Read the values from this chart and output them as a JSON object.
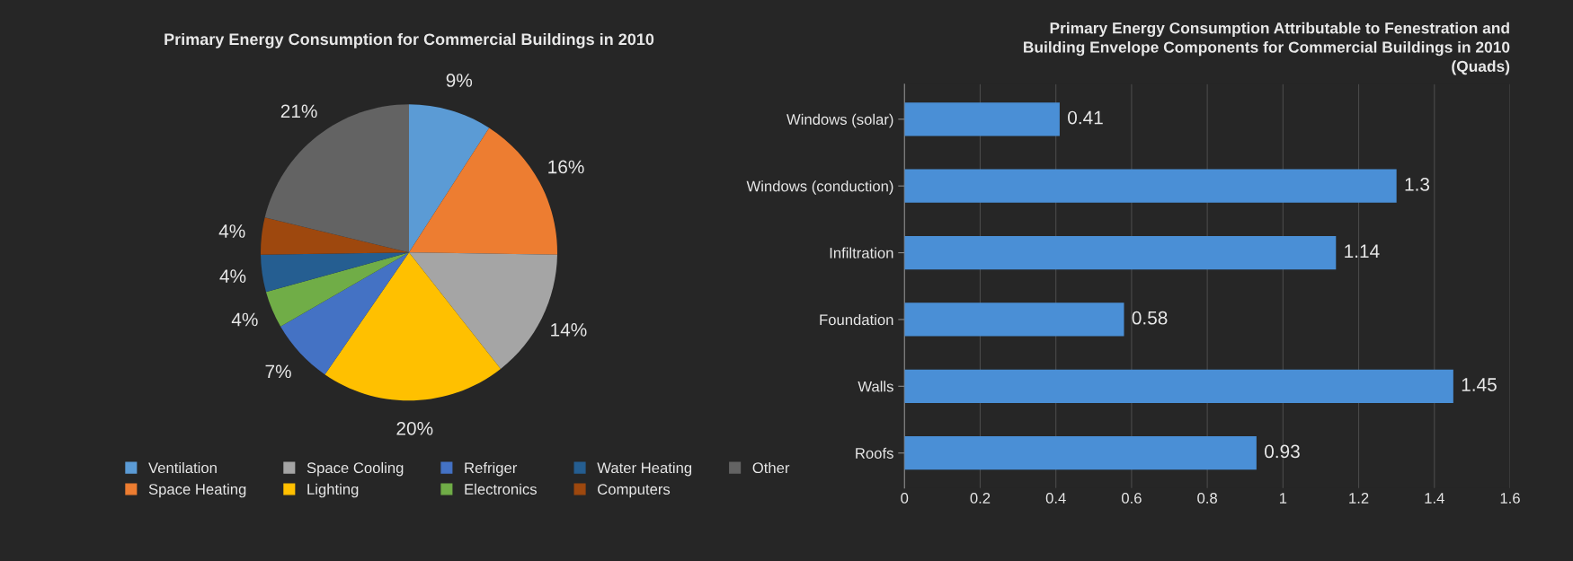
{
  "chart_data": [
    {
      "type": "pie",
      "title": "Primary Energy Consumption for Commercial Buildings in 2010",
      "categories": [
        "Ventilation",
        "Space Heating",
        "Space Cooling",
        "Lighting",
        "Refriger",
        "Electronics",
        "Water Heating",
        "Computers",
        "Other"
      ],
      "values": [
        9,
        16,
        14,
        20,
        7,
        4,
        4,
        4,
        21
      ],
      "value_labels": [
        "9%",
        "16%",
        "14%",
        "20%",
        "7%",
        "4%",
        "4%",
        "4%",
        "21%"
      ],
      "colors": [
        "#5b9bd5",
        "#ed7d31",
        "#a5a5a5",
        "#ffc000",
        "#4472c4",
        "#70ad47",
        "#255e91",
        "#9e480e",
        "#636363"
      ],
      "legend": "bottom"
    },
    {
      "type": "bar",
      "orientation": "horizontal",
      "title": "Primary Energy Consumption Attributable to Fenestration and\nBuilding Envelope Components for Commercial Buildings in 2010\n(Quads)",
      "categories": [
        "Windows (solar)",
        "Windows (conduction)",
        "Infiltration",
        "Foundation",
        "Walls",
        "Roofs"
      ],
      "values": [
        0.41,
        1.3,
        1.14,
        0.58,
        1.45,
        0.93
      ],
      "color": "#4a8fd6",
      "data_labels": true,
      "grid": "x",
      "xlim": [
        0,
        1.6
      ],
      "xticks": [
        0,
        0.2,
        0.4,
        0.6,
        0.8,
        1,
        1.2,
        1.4,
        1.6
      ]
    }
  ]
}
